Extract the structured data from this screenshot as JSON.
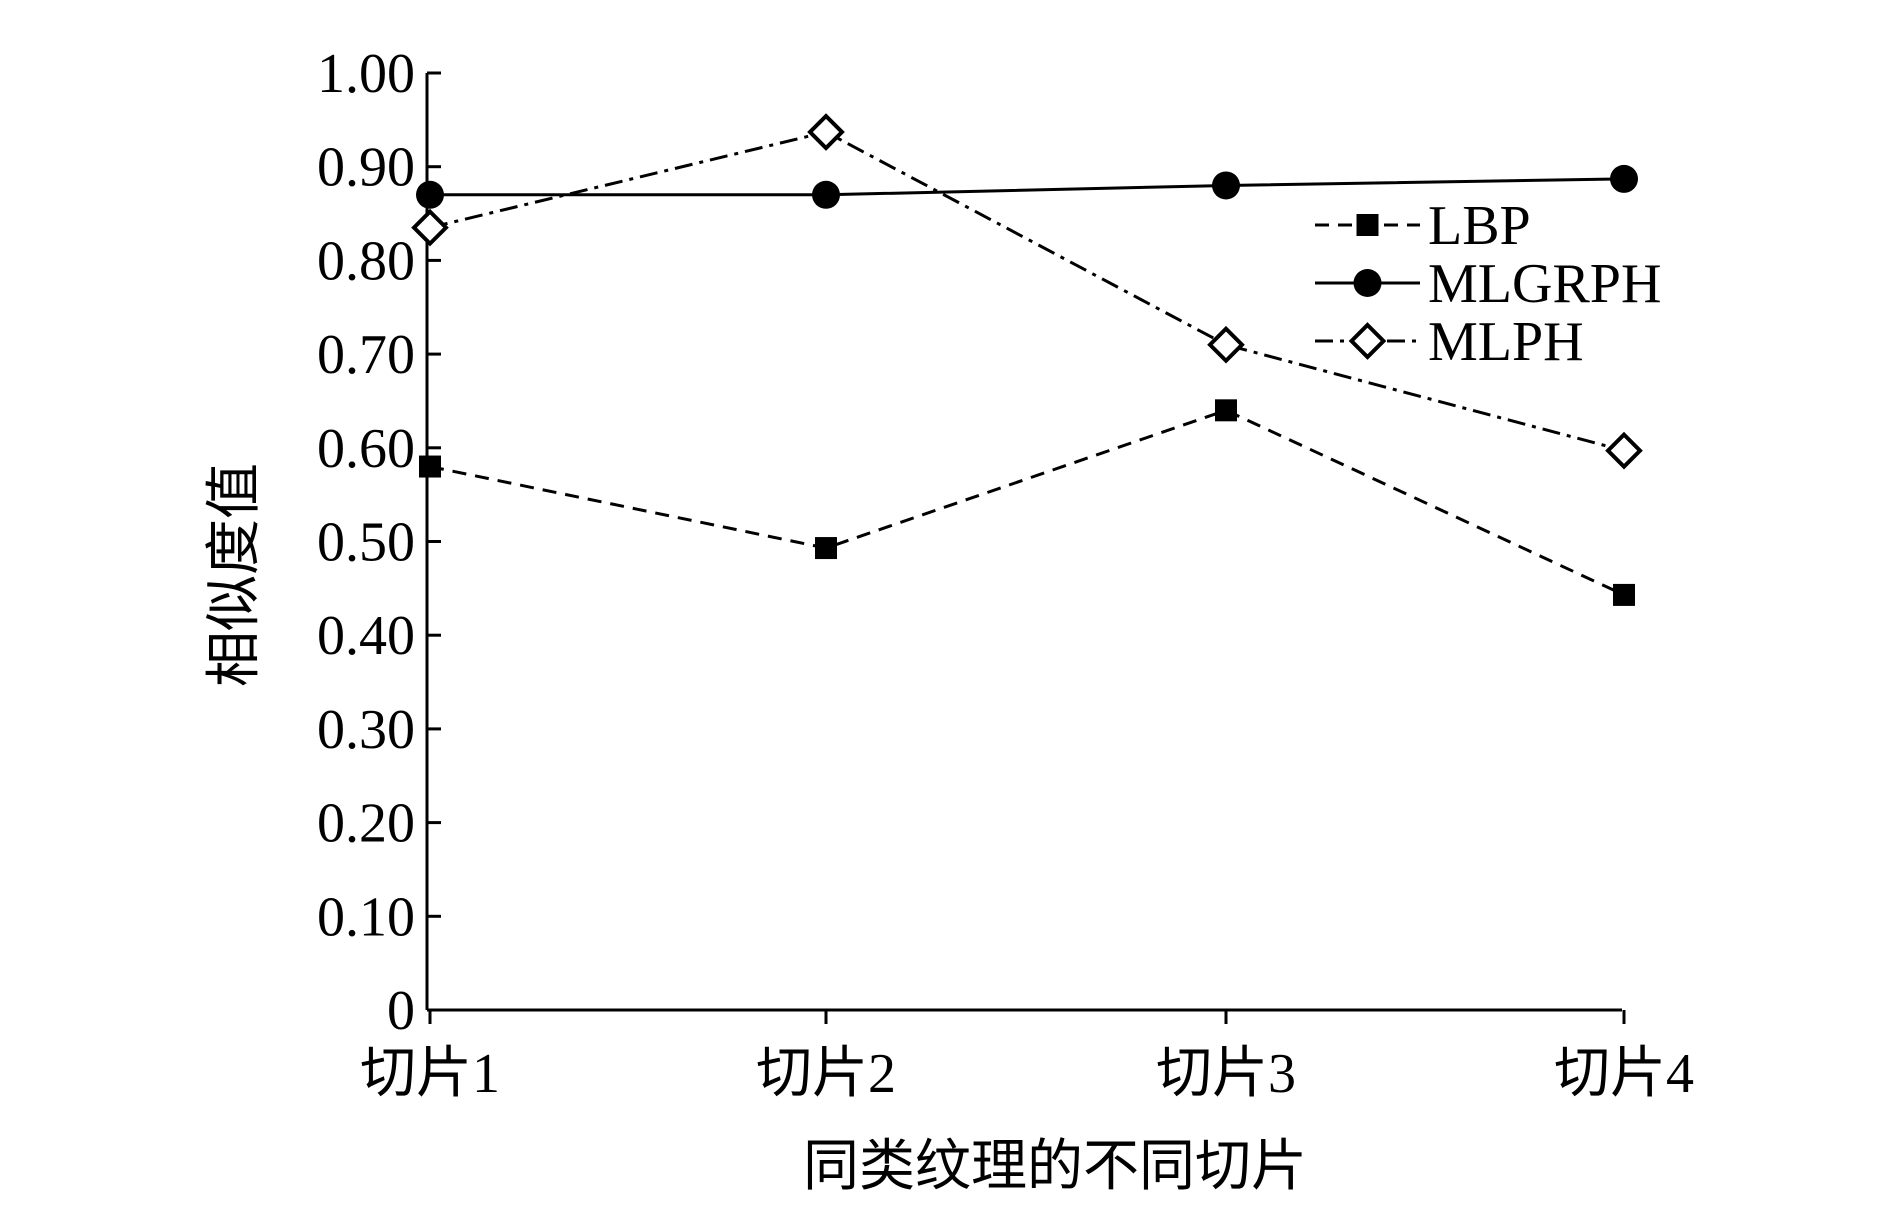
{
  "chart_data": {
    "type": "line",
    "title": "",
    "xlabel": "同类纹理的不同切片",
    "ylabel": "相似度值",
    "categories": [
      "切片1",
      "切片2",
      "切片3",
      "切片4"
    ],
    "ylim": [
      0,
      1.0
    ],
    "yticks": [
      "0",
      "0.10",
      "0.20",
      "0.30",
      "0.40",
      "0.50",
      "0.60",
      "0.70",
      "0.80",
      "0.90",
      "1.00"
    ],
    "grid": false,
    "legend_position": "top-right",
    "series": [
      {
        "name": "LBP",
        "values": [
          0.58,
          0.493,
          0.64,
          0.443
        ],
        "line": "dashed",
        "marker": "filled-square"
      },
      {
        "name": "MLGRPH",
        "values": [
          0.87,
          0.87,
          0.88,
          0.887
        ],
        "line": "solid",
        "marker": "filled-circle"
      },
      {
        "name": "MLPH",
        "values": [
          0.835,
          0.937,
          0.71,
          0.597
        ],
        "line": "dash-dot",
        "marker": "open-diamond"
      }
    ]
  }
}
